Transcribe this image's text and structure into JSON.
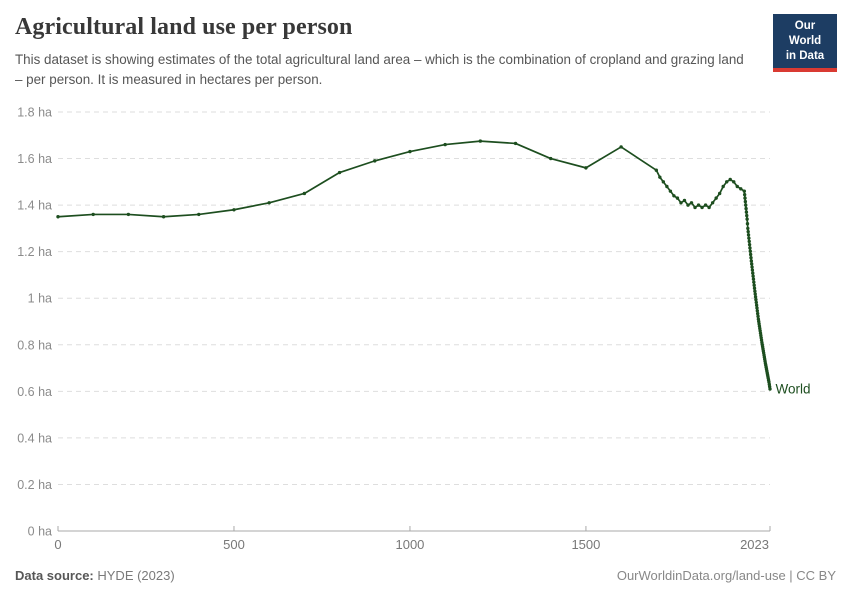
{
  "header": {
    "title": "Agricultural land use per person",
    "subtitle": "This dataset is showing estimates of the total agricultural land area – which is the combination of cropland and grazing land – per person. It is measured in hectares per person.",
    "logo": {
      "line1": "Our World",
      "line2": "in Data",
      "bg_color": "#1d3d63",
      "bar_color": "#d93a32"
    }
  },
  "footer": {
    "source_label": "Data source:",
    "source_value": "HYDE (2023)",
    "attribution": "OurWorldinData.org/land-use | CC BY"
  },
  "colors": {
    "line": "#1d4e1f",
    "grid": "#dedede",
    "axis": "#a8a8a8",
    "x_tick_label": "#787878",
    "y_tick_label": "#8b8b8b"
  },
  "chart_data": {
    "type": "line",
    "title": "Agricultural land use per person",
    "unit": "hectares per person",
    "xlim": [
      0,
      2023
    ],
    "ylim": [
      0,
      1.8
    ],
    "grid": "dashed-horizontal",
    "legend_position": "end-of-line-label",
    "y_ticks": [
      {
        "value": 1.8,
        "label": "1.8 ha"
      },
      {
        "value": 1.6,
        "label": "1.6 ha"
      },
      {
        "value": 1.4,
        "label": "1.4 ha"
      },
      {
        "value": 1.2,
        "label": "1.2 ha"
      },
      {
        "value": 1.0,
        "label": "1 ha"
      },
      {
        "value": 0.8,
        "label": "0.8 ha"
      },
      {
        "value": 0.6,
        "label": "0.6 ha"
      },
      {
        "value": 0.4,
        "label": "0.4 ha"
      },
      {
        "value": 0.2,
        "label": "0.2 ha"
      },
      {
        "value": 0,
        "label": "0 ha"
      }
    ],
    "x_ticks": [
      {
        "value": 0,
        "label": "0"
      },
      {
        "value": 500,
        "label": "500"
      },
      {
        "value": 1000,
        "label": "1000"
      },
      {
        "value": 1500,
        "label": "1500"
      },
      {
        "value": 2023,
        "label": "2023"
      }
    ],
    "series": [
      {
        "name": "World",
        "color": "#1d4e1f",
        "points": [
          [
            0,
            1.35
          ],
          [
            100,
            1.36
          ],
          [
            200,
            1.36
          ],
          [
            300,
            1.35
          ],
          [
            400,
            1.36
          ],
          [
            500,
            1.38
          ],
          [
            600,
            1.41
          ],
          [
            700,
            1.45
          ],
          [
            800,
            1.54
          ],
          [
            900,
            1.59
          ],
          [
            1000,
            1.63
          ],
          [
            1100,
            1.66
          ],
          [
            1200,
            1.675
          ],
          [
            1300,
            1.665
          ],
          [
            1400,
            1.6
          ],
          [
            1500,
            1.56
          ],
          [
            1600,
            1.65
          ],
          [
            1700,
            1.55
          ],
          [
            1710,
            1.52
          ],
          [
            1720,
            1.5
          ],
          [
            1730,
            1.48
          ],
          [
            1740,
            1.46
          ],
          [
            1750,
            1.44
          ],
          [
            1760,
            1.43
          ],
          [
            1770,
            1.41
          ],
          [
            1780,
            1.42
          ],
          [
            1790,
            1.4
          ],
          [
            1800,
            1.41
          ],
          [
            1810,
            1.39
          ],
          [
            1820,
            1.4
          ],
          [
            1830,
            1.39
          ],
          [
            1840,
            1.4
          ],
          [
            1850,
            1.39
          ],
          [
            1860,
            1.41
          ],
          [
            1870,
            1.43
          ],
          [
            1880,
            1.45
          ],
          [
            1890,
            1.48
          ],
          [
            1900,
            1.5
          ],
          [
            1910,
            1.51
          ],
          [
            1920,
            1.5
          ],
          [
            1930,
            1.48
          ],
          [
            1940,
            1.47
          ],
          [
            1950,
            1.46
          ],
          [
            1951,
            1.445
          ],
          [
            1952,
            1.43
          ],
          [
            1953,
            1.415
          ],
          [
            1954,
            1.4
          ],
          [
            1955,
            1.385
          ],
          [
            1956,
            1.37
          ],
          [
            1957,
            1.355
          ],
          [
            1958,
            1.34
          ],
          [
            1959,
            1.32
          ],
          [
            1960,
            1.3
          ],
          [
            1961,
            1.286
          ],
          [
            1962,
            1.272
          ],
          [
            1963,
            1.258
          ],
          [
            1964,
            1.244
          ],
          [
            1965,
            1.23
          ],
          [
            1966,
            1.216
          ],
          [
            1967,
            1.202
          ],
          [
            1968,
            1.188
          ],
          [
            1969,
            1.174
          ],
          [
            1970,
            1.16
          ],
          [
            1971,
            1.147
          ],
          [
            1972,
            1.134
          ],
          [
            1973,
            1.121
          ],
          [
            1974,
            1.108
          ],
          [
            1975,
            1.095
          ],
          [
            1976,
            1.082
          ],
          [
            1977,
            1.069
          ],
          [
            1978,
            1.056
          ],
          [
            1979,
            1.043
          ],
          [
            1980,
            1.03
          ],
          [
            1981,
            1.018
          ],
          [
            1982,
            1.006
          ],
          [
            1983,
            0.994
          ],
          [
            1984,
            0.982
          ],
          [
            1985,
            0.97
          ],
          [
            1986,
            0.958
          ],
          [
            1987,
            0.946
          ],
          [
            1988,
            0.934
          ],
          [
            1989,
            0.922
          ],
          [
            1990,
            0.91
          ],
          [
            1991,
            0.9
          ],
          [
            1992,
            0.89
          ],
          [
            1993,
            0.88
          ],
          [
            1994,
            0.87
          ],
          [
            1995,
            0.86
          ],
          [
            1996,
            0.85
          ],
          [
            1997,
            0.84
          ],
          [
            1998,
            0.83
          ],
          [
            1999,
            0.82
          ],
          [
            2000,
            0.81
          ],
          [
            2001,
            0.801
          ],
          [
            2002,
            0.792
          ],
          [
            2003,
            0.783
          ],
          [
            2004,
            0.774
          ],
          [
            2005,
            0.765
          ],
          [
            2006,
            0.756
          ],
          [
            2007,
            0.747
          ],
          [
            2008,
            0.738
          ],
          [
            2009,
            0.729
          ],
          [
            2010,
            0.72
          ],
          [
            2011,
            0.712
          ],
          [
            2012,
            0.704
          ],
          [
            2013,
            0.696
          ],
          [
            2014,
            0.688
          ],
          [
            2015,
            0.68
          ],
          [
            2016,
            0.672
          ],
          [
            2017,
            0.664
          ],
          [
            2018,
            0.656
          ],
          [
            2019,
            0.648
          ],
          [
            2020,
            0.64
          ],
          [
            2021,
            0.63
          ],
          [
            2022,
            0.62
          ],
          [
            2023,
            0.61
          ]
        ]
      }
    ]
  }
}
